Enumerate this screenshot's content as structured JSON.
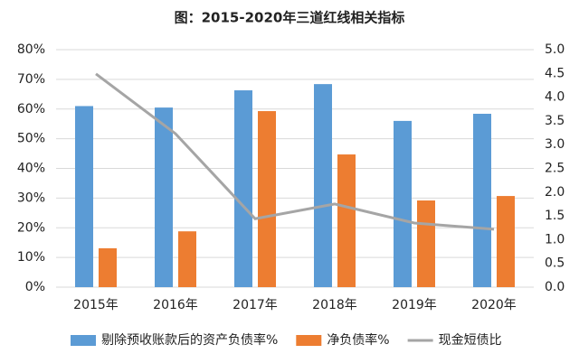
{
  "chart_data": {
    "type": "bar",
    "title": "图：2015-2020年三道红线相关指标",
    "categories": [
      "2015年",
      "2016年",
      "2017年",
      "2018年",
      "2019年",
      "2020年"
    ],
    "series": [
      {
        "name": "剔除预收账款后的资产负债率%",
        "type": "bar",
        "color": "#5b9bd5",
        "values": [
          61,
          60.5,
          66.3,
          68.4,
          56,
          58.4
        ]
      },
      {
        "name": "净负债率%",
        "type": "bar",
        "color": "#ed7d31",
        "values": [
          13.1,
          18.8,
          59.3,
          44.7,
          29.2,
          30.7
        ]
      },
      {
        "name": "现金短债比",
        "type": "line",
        "axis": "y2",
        "color": "#a5a5a5",
        "values": [
          4.49,
          3.23,
          1.44,
          1.75,
          1.35,
          1.22
        ]
      }
    ],
    "ylim": [
      0,
      80
    ],
    "yticks": [
      {
        "value": 0,
        "label": "0%"
      },
      {
        "value": 10,
        "label": "10%"
      },
      {
        "value": 20,
        "label": "20%"
      },
      {
        "value": 30,
        "label": "30%"
      },
      {
        "value": 40,
        "label": "40%"
      },
      {
        "value": 50,
        "label": "50%"
      },
      {
        "value": 60,
        "label": "60%"
      },
      {
        "value": 70,
        "label": "70%"
      },
      {
        "value": 80,
        "label": "80%"
      }
    ],
    "y2lim": [
      0,
      5
    ],
    "y2ticks": [
      {
        "value": 0,
        "label": "0.0"
      },
      0.5,
      {
        "value": 1,
        "label": "1.0"
      },
      1.5,
      {
        "value": 2,
        "label": "2.0"
      },
      2.5,
      {
        "value": 3,
        "label": "3.0"
      },
      3.5,
      {
        "value": 4,
        "label": "4.0"
      },
      4.5,
      {
        "value": 5,
        "label": "5.0"
      }
    ],
    "legend": "bottom"
  }
}
